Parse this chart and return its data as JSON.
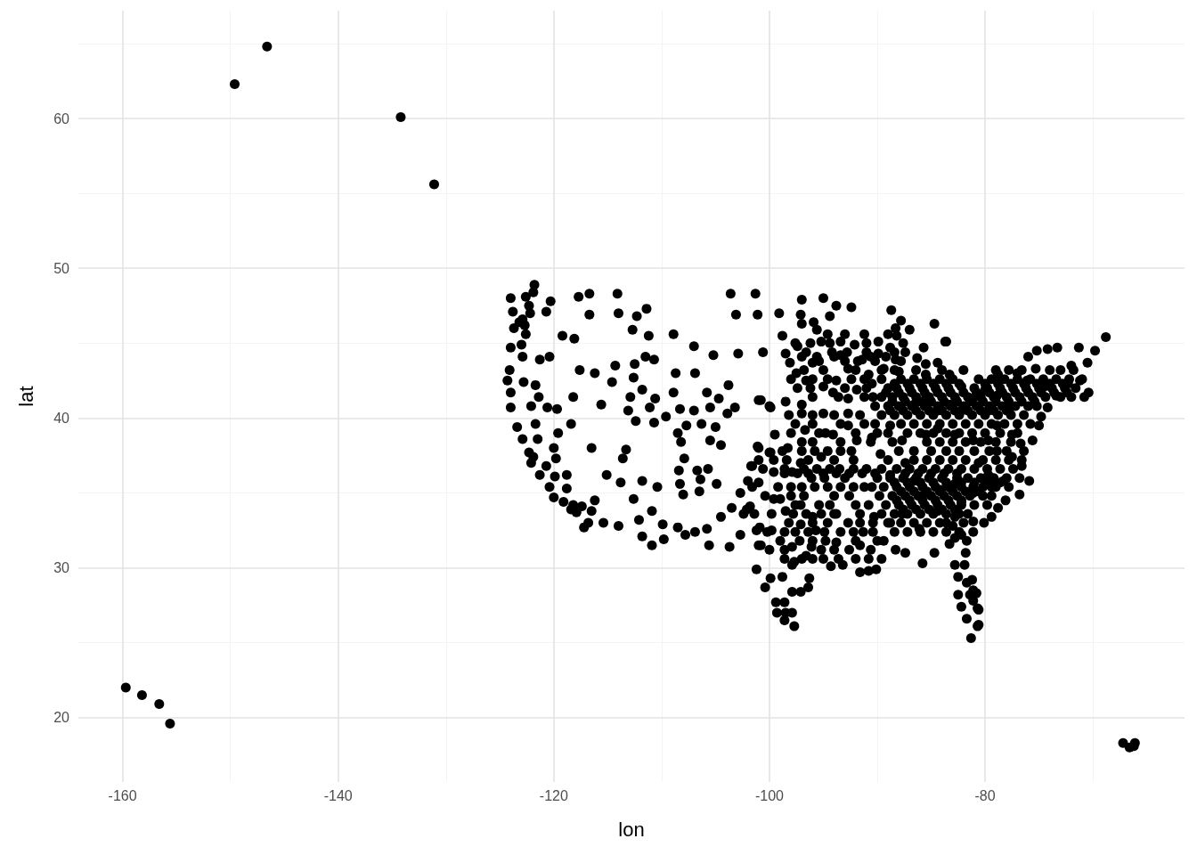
{
  "chart_data": {
    "type": "scatter",
    "xlabel": "lon",
    "ylabel": "lat",
    "color": "#000000",
    "marker": "circle",
    "grid": true,
    "xlim": [
      -164.1,
      -61.5
    ],
    "ylim": [
      15.7,
      67.2
    ],
    "xticks": [
      -160,
      -140,
      -120,
      -100,
      -80
    ],
    "yticks": [
      20,
      30,
      40,
      50,
      60
    ],
    "x": [
      -159.7,
      -158.2,
      -156.6,
      -155.6,
      -149.6,
      -146.6,
      -134.2,
      -131.1,
      -67.2,
      -66.1,
      -66.6,
      -66.2,
      -121.8,
      -124.0,
      -123.8,
      -123.7,
      -124.0,
      -124.1,
      -124.3,
      -124.0,
      -124.0,
      -123.4,
      -122.9,
      -122.1,
      -121.3,
      -120.4,
      -120.0,
      -119.1,
      -118.2,
      -122.3,
      -122.6,
      -122.9,
      -122.6,
      -123.0,
      -122.9,
      -122.8,
      -121.7,
      -121.4,
      -121.9,
      -122.3,
      -121.5,
      -120.7,
      -118.4,
      -117.2,
      -117.9,
      -117.4,
      -116.5,
      -116.7,
      -117.7,
      -114.1,
      -116.7,
      -120.3,
      -120.7,
      -119.2,
      -118.1,
      -114.0,
      -112.3,
      -111.4,
      -112.7,
      -111.2,
      -108.9,
      -107.0,
      -103.6,
      -101.3,
      -103.1,
      -101.1,
      -105.2,
      -102.9,
      -100.6,
      -120.4,
      -121.3,
      -117.6,
      -116.2,
      -114.3,
      -112.5,
      -112.6,
      -114.6,
      -111.5,
      -110.7,
      -108.7,
      -106.9,
      -103.8,
      -118.2,
      -115.6,
      -112.9,
      -111.8,
      -110.6,
      -108.9,
      -113.1,
      -112.4,
      -111.1,
      -109.6,
      -110.7,
      -108.3,
      -107.0,
      -105.8,
      -104.7,
      -105.5,
      -103.9,
      -103.2,
      -100.8,
      -99.9,
      -122.1,
      -120.6,
      -119.7,
      -118.4,
      -119.6,
      -121.7,
      -120.0,
      -119.8,
      -119.9,
      -118.8,
      -118.8,
      -116.5,
      -113.3,
      -113.6,
      -115.1,
      -113.8,
      -111.8,
      -110.4,
      -116.2,
      -112.6,
      -116.8,
      -115.4,
      -114.0,
      -112.1,
      -110.9,
      -111.8,
      -110.9,
      -109.8,
      -109.9,
      -108.5,
      -107.8,
      -106.9,
      -105.8,
      -105.6,
      -103.7,
      -108.5,
      -107.7,
      -106.3,
      -105.0,
      -105.5,
      -104.5,
      -108.2,
      -107.9,
      -108.4,
      -106.7,
      -105.7,
      -108.3,
      -108.0,
      -106.4,
      -106.5,
      -104.9,
      -101.0,
      -99.9,
      -101.6,
      -102.0,
      -102.7,
      -103.5,
      -104.5,
      -102.4,
      -101.8,
      -102.7,
      -100.9,
      -100.8,
      -99.8,
      -97.0,
      -95.0,
      -93.8,
      -92.4,
      -99.1,
      -97.1,
      -97.0,
      -95.9,
      -95.6,
      -94.4,
      -98.8,
      -94.6,
      -88.7,
      -87.8,
      -87.0,
      -84.7,
      -83.7,
      -88.3,
      -88.2,
      -98.5,
      -97.4,
      -98.1,
      -97.5,
      -96.6,
      -96.0,
      -95.2,
      -93.4,
      -93.4,
      -92.1,
      -91.4,
      -92.7,
      -93.8,
      -94.1,
      -92.7,
      -95.0,
      -89.9,
      -89.9,
      -88.8,
      -88.3,
      -90.8,
      -91.9,
      -90.5,
      -89.4,
      -88.0,
      -85.7,
      -86.3,
      -85.5,
      -84.4,
      -83.3,
      -82.2,
      -85.5,
      -101.0,
      -100.0,
      -98.5,
      -97.0,
      -97.0,
      -95.0,
      -92.7,
      -96.7,
      -95.4,
      -94.1,
      -92.7,
      -91.9,
      -90.5,
      -88.8,
      -87.7,
      -86.6,
      -85.5,
      -84.4,
      -83.3,
      -82.2,
      -81.1,
      -80.0,
      -79.7,
      -84.4,
      -85.5,
      -82.8,
      -81.1,
      -86.6,
      -101.1,
      -100.0,
      -99.5,
      -98.3,
      -101.7,
      -101.0,
      -101.0,
      -99.6,
      -97.9,
      -97.1,
      -96.1,
      -95.2,
      -94.9,
      -93.5,
      -92.4,
      -93.0,
      -91.0,
      -89.7,
      -90.5,
      -88.8,
      -87.4,
      -86.6,
      -85.5,
      -84.1,
      -82.8,
      -82.2,
      -81.1,
      -79.4,
      -99.6,
      -98.5,
      -99.0,
      -97.1,
      -96.0,
      -94.9,
      -93.8,
      -92.7,
      -93.8,
      -91.6,
      -91.3,
      -90.8,
      -90.1,
      -89.4,
      -90.3,
      -88.3,
      -87.4,
      -85.8,
      -84.7,
      -86.1,
      -87.7,
      -88.8,
      -84.4,
      -82.8,
      -81.7,
      -82.8,
      -81.1,
      -102.1,
      -101.2,
      -101.0,
      -99.0,
      -97.9,
      -97.1,
      -95.7,
      -96.1,
      -97.7,
      -96.6,
      -94.3,
      -93.2,
      -91.6,
      -101.2,
      -100.4,
      -99.9,
      -99.4,
      -98.6,
      -99.3,
      -98.5,
      -98.6,
      -97.7,
      -97.9,
      -97.9,
      -97.1,
      -96.4,
      -96.3,
      -98.8,
      -97.9,
      -82.8,
      -81.9,
      -82.5,
      -81.7,
      -82.5,
      -81.4,
      -81.1,
      -82.2,
      -80.7,
      -81.7,
      -80.6,
      -81.3,
      -81.1,
      -83.6,
      -68.8,
      -69.8,
      -70.5,
      -71.3,
      -70.4,
      -70.8,
      -71.2,
      -72.3,
      -72.0,
      -73.3,
      -74.2,
      -75.2,
      -76.0,
      -75.3,
      -77.0,
      -78.8,
      -76.1,
      -74.5,
      -73.4,
      -74.2,
      -74.8,
      -75.0,
      -75.6,
      -76.7,
      -77.5,
      -76.6,
      -75.9,
      -76.8,
      -78.1,
      -78.8,
      -79.4,
      -80.1,
      -81.1,
      -81.8,
      -81.2,
      -80.8,
      -80.6,
      -80.7,
      -78.9,
      -77.8,
      -78.9,
      -77.5,
      -79.7,
      -78.9,
      -80.6,
      -79.7,
      -78.3,
      -81.1,
      -82.2,
      -83.0,
      -83.3,
      -82.2,
      -84.0,
      -82.0,
      -79.0,
      -77.8,
      -76.6,
      -74.0,
      -73.0,
      -71.8,
      -87.8,
      -86.6,
      -85.4,
      -84.2,
      -83.0,
      -80.6,
      -79.4,
      -78.2,
      -77.0,
      -75.8,
      -74.6,
      -73.4,
      -72.2,
      -71.0,
      -89.0,
      -88.2,
      -87.0,
      -85.8,
      -84.6,
      -83.4,
      -81.0,
      -79.8,
      -78.6,
      -77.4,
      -76.2,
      -75.0,
      -73.8,
      -72.6,
      -71.6,
      -89.6,
      -88.6,
      -87.6,
      -86.4,
      -85.2,
      -84.0,
      -82.8,
      -81.6,
      -80.4,
      -79.2,
      -78.0,
      -76.8,
      -75.6,
      -74.4,
      -73.0,
      -72.0,
      -90.2,
      -89.0,
      -88.0,
      -86.8,
      -85.6,
      -84.4,
      -83.2,
      -82.0,
      -80.8,
      -79.6,
      -78.4,
      -77.2,
      -76.0,
      -75.2,
      -89.6,
      -88.4,
      -87.2,
      -86.0,
      -84.8,
      -83.6,
      -82.4,
      -81.2,
      -80.0,
      -78.8,
      -77.6,
      -76.4,
      -90.2,
      -87.8,
      -86.6,
      -85.4,
      -84.2,
      -83.0,
      -81.8,
      -80.6,
      -79.4,
      -78.2,
      -77.0,
      -75.8,
      -89.0,
      -87.2,
      -86.0,
      -84.8,
      -83.6,
      -82.4,
      -81.2,
      -80.0,
      -78.6,
      -77.0,
      -88.6,
      -85.4,
      -84.2,
      -83.0,
      -81.8,
      -80.4,
      -79.0,
      -77.6,
      -88.0,
      -85.0,
      -83.6,
      -82.4,
      -81.0,
      -79.6,
      -78.0,
      -76.4,
      -89.0,
      -86.6,
      -85.4,
      -84.2,
      -83.0,
      -81.8,
      -80.2,
      -79.0,
      -77.8,
      -76.6,
      -89.6,
      -88.2,
      -87.0,
      -85.8,
      -84.6,
      -83.4,
      -82.2,
      -81.0,
      -79.8,
      -78.6,
      -77.4,
      -90.0,
      -88.8,
      -87.6,
      -86.4,
      -85.2,
      -84.0,
      -82.6,
      -81.6,
      -80.4,
      -79.2,
      -78.0,
      -76.8,
      -89.4,
      -88.2,
      -87.0,
      -85.8,
      -84.6,
      -83.4,
      -82.2,
      -80.2,
      -79.0,
      -77.8,
      -89.8,
      -88.6,
      -87.4,
      -86.2,
      -85.0,
      -83.8,
      -82.6,
      -81.4,
      -80.2,
      -79.4,
      -89.2,
      -88.0,
      -86.8,
      -85.6,
      -84.4,
      -83.2,
      -81.0,
      -79.8,
      -89.6,
      -88.4,
      -87.2,
      -86.0,
      -84.8,
      -83.6,
      -82.4,
      -81.6,
      -89.0,
      -87.8,
      -86.6,
      -85.4,
      -84.2,
      -83.6,
      -82.0,
      -88.4,
      -87.2,
      -86.0,
      -84.8,
      -83.6,
      -82.4,
      -98.8,
      -97.0,
      -95.8,
      -94.6,
      -93.4,
      -99.6,
      -98.4,
      -96.4,
      -94.0,
      -92.2,
      -100.6,
      -98.6,
      -96.8,
      -95.6,
      -94.4,
      -92.2,
      -101.6,
      -99.2,
      -98.0,
      -97.0,
      -95.8,
      -94.6,
      -93.4,
      -92.2,
      -91.2,
      -100.4,
      -98.0,
      -96.8,
      -94.0,
      -92.6,
      -101.4,
      -99.8,
      -97.8,
      -96.6,
      -95.2,
      -94.0,
      -91.6,
      -100.2,
      -98.6,
      -97.6,
      -96.4,
      -93.4,
      -92.2,
      -90.4,
      -100.0,
      -98.6,
      -95.2,
      -94.0,
      -92.6,
      -90.6,
      -98.6,
      -95.0,
      -92.0,
      -89.6,
      -96.6,
      -94.2,
      -92.8,
      -91.0,
      -88.4,
      -87.4,
      -95.4,
      -93.0,
      -91.8,
      -90.2,
      -87.8,
      -96.8,
      -95.0,
      -92.0,
      -89.6,
      -88.4,
      -86.4,
      -98.0,
      -96.0,
      -94.6,
      -92.4,
      -91.2,
      -89.6,
      -96.0,
      -93.6,
      -91.2,
      -90.4,
      -98.2,
      -96.0,
      -94.0,
      -91.6,
      -97.6,
      -96.0,
      -93.4,
      -91.2,
      -97.0,
      -96.0,
      -93.4,
      -90.6,
      -88.4,
      -87.2,
      -86.0,
      -84.8,
      -83.6,
      -82.4,
      -80.0,
      -78.8,
      -77.6,
      -76.4,
      -75.2,
      -74.0,
      -72.8,
      -89.2,
      -88.0,
      -86.8,
      -85.6,
      -84.4,
      -83.2,
      -82.0,
      -80.8,
      -79.6,
      -78.4,
      -77.2,
      -76.0,
      -74.8,
      -73.6,
      -72.4,
      -88.6,
      -87.4,
      -86.2,
      -85.0,
      -83.8,
      -82.6,
      -81.4,
      -80.2,
      -79.0,
      -77.8,
      -76.6,
      -75.4,
      -88.8,
      -87.6,
      -86.4,
      -85.2,
      -84.0,
      -82.8,
      -81.6,
      -80.4,
      -79.2,
      -78.0,
      -88.4,
      -87.2,
      -86.0,
      -84.8,
      -83.6,
      -82.2,
      -81.0,
      -79.8,
      -78.6,
      -87.8,
      -86.6,
      -85.4,
      -84.2,
      -83.0,
      -81.8,
      -80.6,
      -88.2,
      -87.0,
      -85.8,
      -84.6,
      -83.4,
      -82.2,
      -87.6,
      -86.4,
      -85.2,
      -84.0,
      -82.8,
      -87.4,
      -86.2,
      -85.0,
      -83.8,
      -82.6,
      -93.0,
      -91.2,
      -89.0,
      -97.6,
      -96.2,
      -94.4,
      -91.0,
      -87.6,
      -97.0,
      -95.6,
      -94.0,
      -90.6,
      -89.2,
      -97.4,
      -96.2,
      -93.0,
      -91.0,
      -98.0,
      -94.8,
      -92.0,
      -90.0,
      -98.6,
      -97.4,
      -96.4,
      -95.0,
      -93.8,
      -92.6,
      -91.4,
      -90.2,
      -97.6,
      -95.4,
      -94.4,
      -92.0,
      -90.8,
      -98.2,
      -96.0,
      -94.6,
      -91.6,
      -90.4,
      -97.2,
      -96.0,
      -94.8,
      -92.0,
      -90.0,
      -97.0,
      -96.0,
      -93.6,
      -90.8,
      -122.2,
      -123.2,
      -122.7,
      -121.9
    ],
    "values": [
      22.0,
      21.5,
      20.9,
      19.6,
      62.3,
      64.8,
      60.1,
      55.6,
      18.3,
      18.3,
      18.0,
      18.1,
      48.9,
      48.0,
      47.1,
      46.0,
      44.7,
      43.2,
      42.5,
      41.7,
      40.7,
      39.4,
      38.6,
      37.0,
      36.2,
      35.4,
      34.7,
      34.4,
      34.2,
      47.5,
      48.1,
      46.6,
      45.6,
      44.9,
      44.1,
      42.4,
      42.2,
      41.4,
      37.4,
      37.7,
      38.6,
      36.8,
      33.9,
      32.7,
      33.7,
      34.1,
      33.8,
      48.3,
      48.1,
      48.3,
      46.9,
      47.8,
      47.1,
      45.5,
      45.3,
      47.0,
      46.8,
      47.3,
      45.9,
      45.5,
      45.6,
      44.8,
      48.3,
      48.3,
      46.9,
      46.9,
      44.2,
      44.3,
      44.4,
      44.1,
      43.9,
      43.2,
      43.0,
      43.5,
      43.6,
      42.7,
      42.4,
      44.1,
      43.9,
      43.0,
      43.0,
      42.2,
      41.4,
      40.9,
      41.4,
      41.9,
      41.3,
      41.7,
      40.5,
      39.8,
      40.7,
      40.1,
      39.7,
      40.6,
      40.5,
      41.7,
      41.3,
      40.7,
      40.3,
      40.7,
      41.2,
      40.7,
      40.8,
      40.7,
      40.6,
      39.6,
      39.0,
      39.6,
      38.0,
      37.3,
      36.1,
      36.2,
      35.3,
      38.0,
      37.9,
      37.3,
      36.2,
      35.7,
      35.8,
      35.4,
      34.5,
      34.6,
      33.0,
      33.0,
      32.8,
      33.2,
      33.8,
      32.1,
      31.5,
      31.9,
      32.9,
      32.7,
      32.2,
      32.4,
      32.6,
      31.5,
      31.4,
      39.0,
      39.5,
      39.6,
      39.4,
      38.5,
      38.2,
      38.4,
      37.3,
      36.5,
      36.5,
      36.6,
      35.6,
      34.9,
      35.9,
      35.1,
      35.6,
      38.0,
      37.7,
      36.8,
      35.8,
      35.0,
      34.0,
      33.4,
      33.6,
      34.1,
      32.2,
      32.7,
      31.5,
      32.5,
      47.9,
      48.0,
      47.5,
      47.4,
      47.0,
      46.9,
      46.3,
      46.4,
      45.9,
      46.8,
      45.5,
      45.6,
      47.2,
      46.5,
      45.9,
      46.3,
      45.1,
      46.0,
      45.5,
      44.3,
      44.8,
      43.7,
      43.0,
      42.5,
      43.7,
      45.1,
      45.1,
      44.2,
      44.9,
      43.9,
      43.3,
      42.5,
      41.7,
      41.3,
      42.1,
      45.1,
      44.3,
      44.7,
      43.9,
      42.9,
      41.9,
      42.3,
      43.3,
      43.1,
      44.7,
      44.0,
      43.6,
      43.7,
      42.9,
      42.1,
      42.9,
      41.2,
      40.8,
      41.1,
      40.9,
      40.3,
      40.3,
      40.3,
      39.2,
      39.0,
      38.9,
      39.5,
      38.5,
      38.7,
      39.5,
      38.5,
      40.9,
      41.3,
      40.5,
      40.9,
      40.5,
      41.3,
      41.9,
      40.5,
      39.3,
      38.9,
      38.9,
      38.5,
      37.8,
      38.1,
      37.7,
      38.9,
      38.0,
      36.8,
      37.2,
      35.7,
      36.4,
      36.4,
      37.0,
      36.0,
      37.4,
      36.0,
      36.6,
      37.8,
      36.0,
      36.6,
      37.6,
      35.4,
      36.2,
      37.0,
      35.8,
      35.0,
      35.2,
      35.6,
      34.4,
      35.0,
      35.4,
      34.6,
      33.8,
      34.6,
      34.2,
      33.4,
      32.4,
      33.6,
      33.0,
      31.7,
      31.5,
      32.4,
      29.8,
      29.9,
      31.8,
      33.4,
      31.2,
      31.0,
      30.3,
      31.0,
      32.6,
      33.6,
      33.0,
      33.8,
      32.0,
      31.8,
      33.4,
      33.1,
      33.9,
      32.5,
      31.5,
      31.8,
      31.4,
      32.9,
      32.5,
      31.4,
      30.4,
      30.8,
      30.1,
      30.2,
      29.7,
      29.9,
      28.7,
      29.3,
      27.7,
      27.7,
      27.0,
      27.0,
      26.5,
      26.1,
      27.0,
      28.4,
      28.4,
      28.7,
      29.3,
      29.4,
      30.2,
      30.2,
      30.2,
      29.4,
      29.0,
      28.2,
      28.2,
      27.8,
      27.4,
      27.3,
      26.6,
      26.2,
      25.3,
      28.5,
      45.1,
      45.4,
      44.5,
      43.7,
      44.7,
      41.7,
      41.4,
      42.5,
      42.3,
      43.5,
      44.7,
      44.6,
      44.5,
      44.1,
      43.3,
      43.0,
      42.9,
      42.5,
      42.1,
      41.5,
      40.7,
      40.1,
      39.5,
      38.5,
      38.3,
      37.4,
      36.8,
      35.8,
      34.9,
      34.5,
      34.0,
      33.4,
      33.0,
      32.4,
      31.0,
      29.2,
      28.3,
      27.2,
      26.1,
      41.5,
      40.5,
      39.5,
      38.9,
      38.5,
      37.8,
      37.0,
      36.2,
      35.8,
      35.4,
      34.2,
      32.8,
      31.6,
      32.2,
      43.2,
      43.2,
      43.2,
      43.2,
      43.2,
      43.2,
      43.2,
      43.2,
      42.6,
      42.6,
      42.6,
      42.6,
      42.6,
      42.6,
      42.6,
      42.6,
      42.6,
      42.6,
      42.6,
      42.6,
      42.6,
      42.6,
      42.0,
      42.0,
      42.0,
      42.0,
      42.0,
      42.0,
      42.0,
      42.0,
      42.0,
      42.0,
      42.0,
      42.0,
      42.0,
      42.0,
      42.0,
      41.4,
      41.4,
      41.4,
      41.4,
      41.4,
      41.4,
      41.4,
      41.4,
      41.4,
      41.4,
      41.4,
      41.4,
      41.4,
      41.4,
      41.4,
      41.4,
      40.8,
      40.8,
      40.8,
      40.8,
      40.8,
      40.8,
      40.8,
      40.8,
      40.8,
      40.8,
      40.8,
      40.8,
      40.8,
      40.8,
      40.2,
      40.2,
      40.2,
      40.2,
      40.2,
      40.2,
      40.2,
      40.2,
      40.2,
      40.2,
      40.2,
      40.2,
      39.6,
      39.6,
      39.6,
      39.6,
      39.6,
      39.6,
      39.6,
      39.6,
      39.6,
      39.6,
      39.6,
      39.6,
      39.0,
      39.0,
      39.0,
      39.0,
      39.0,
      39.0,
      39.0,
      39.0,
      39.0,
      39.0,
      38.4,
      38.4,
      38.4,
      38.4,
      38.4,
      38.4,
      38.4,
      38.4,
      37.8,
      37.8,
      37.8,
      37.8,
      37.8,
      37.8,
      37.8,
      37.8,
      37.2,
      37.2,
      37.2,
      37.2,
      37.2,
      37.2,
      37.2,
      37.2,
      37.2,
      37.2,
      36.6,
      36.6,
      36.6,
      36.6,
      36.6,
      36.6,
      36.6,
      36.6,
      36.6,
      36.6,
      36.6,
      36.0,
      36.0,
      36.0,
      36.0,
      36.0,
      36.0,
      36.0,
      36.0,
      36.0,
      36.0,
      36.0,
      36.0,
      35.4,
      35.4,
      35.4,
      35.4,
      35.4,
      35.4,
      35.4,
      35.4,
      35.4,
      35.4,
      34.8,
      34.8,
      34.8,
      34.8,
      34.8,
      34.8,
      34.8,
      34.8,
      34.8,
      34.8,
      34.2,
      34.2,
      34.2,
      34.2,
      34.2,
      34.2,
      34.2,
      34.2,
      33.6,
      33.6,
      33.6,
      33.6,
      33.6,
      33.6,
      33.6,
      33.6,
      33.0,
      33.0,
      33.0,
      33.0,
      33.0,
      33.0,
      33.0,
      32.4,
      32.4,
      32.4,
      32.4,
      32.4,
      32.4,
      37.8,
      37.8,
      37.8,
      37.8,
      37.8,
      37.2,
      37.2,
      37.2,
      37.2,
      37.2,
      36.6,
      36.6,
      36.6,
      36.6,
      36.6,
      36.6,
      35.4,
      35.4,
      35.4,
      35.4,
      35.4,
      35.4,
      35.4,
      35.4,
      35.4,
      34.8,
      34.8,
      34.8,
      34.8,
      34.8,
      33.6,
      33.6,
      33.6,
      33.6,
      33.6,
      33.6,
      33.6,
      32.4,
      32.4,
      32.4,
      32.4,
      32.4,
      32.4,
      32.4,
      31.2,
      31.2,
      31.2,
      31.2,
      31.2,
      31.2,
      30.6,
      30.6,
      30.6,
      30.6,
      44.4,
      44.4,
      44.4,
      44.4,
      44.4,
      44.4,
      43.8,
      43.8,
      43.8,
      43.8,
      43.8,
      43.2,
      43.2,
      43.2,
      43.2,
      43.2,
      43.2,
      42.6,
      42.6,
      42.6,
      42.6,
      42.6,
      42.6,
      41.4,
      41.4,
      41.4,
      41.4,
      40.2,
      40.2,
      40.2,
      40.2,
      39.6,
      39.6,
      39.6,
      39.6,
      38.4,
      38.4,
      38.4,
      38.4,
      42.3,
      42.3,
      42.3,
      42.3,
      42.3,
      42.3,
      42.3,
      42.3,
      42.3,
      42.3,
      42.3,
      42.3,
      42.3,
      41.7,
      41.7,
      41.7,
      41.7,
      41.7,
      41.7,
      41.7,
      41.7,
      41.7,
      41.7,
      41.7,
      41.7,
      41.7,
      41.7,
      41.7,
      41.1,
      41.1,
      41.1,
      41.1,
      41.1,
      41.1,
      41.1,
      41.1,
      41.1,
      41.1,
      41.1,
      41.1,
      40.5,
      40.5,
      40.5,
      40.5,
      40.5,
      40.5,
      40.5,
      40.5,
      40.5,
      40.5,
      35.7,
      35.7,
      35.7,
      35.7,
      35.7,
      35.7,
      35.7,
      35.7,
      35.7,
      35.1,
      35.1,
      35.1,
      35.1,
      35.1,
      35.1,
      35.1,
      34.5,
      34.5,
      34.5,
      34.5,
      34.5,
      34.5,
      33.9,
      33.9,
      33.9,
      33.9,
      33.9,
      36.3,
      36.3,
      36.3,
      36.3,
      36.3,
      45.6,
      45.6,
      45.6,
      45.0,
      45.0,
      45.0,
      45.0,
      45.0,
      44.1,
      44.1,
      44.1,
      44.1,
      44.1,
      42.0,
      42.0,
      42.0,
      42.0,
      39.0,
      39.0,
      39.0,
      39.0,
      36.3,
      36.3,
      36.3,
      36.3,
      36.3,
      36.3,
      36.3,
      36.3,
      34.2,
      34.2,
      34.2,
      34.2,
      34.2,
      33.0,
      33.0,
      33.0,
      33.0,
      33.0,
      31.8,
      31.8,
      31.8,
      31.8,
      31.8,
      30.6,
      30.6,
      30.6,
      30.6,
      47.0,
      46.4,
      46.2,
      48.4
    ]
  }
}
